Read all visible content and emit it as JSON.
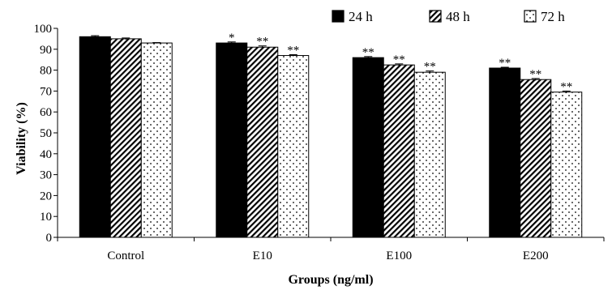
{
  "chart_data": {
    "type": "bar",
    "title": "",
    "xlabel": "Groups (ng/ml)",
    "ylabel": "Viability (%)",
    "ylim": [
      0,
      100
    ],
    "yticks": [
      0,
      10,
      20,
      30,
      40,
      50,
      60,
      70,
      80,
      90,
      100
    ],
    "grid": false,
    "legend_position": "top-right",
    "categories": [
      "Control",
      "E10",
      "E100",
      "E200"
    ],
    "series": [
      {
        "name": "24 h",
        "pattern": "solid-black",
        "values": [
          96,
          93,
          86,
          81
        ],
        "errors": [
          0.5,
          0.5,
          0.5,
          0.4
        ],
        "significance": [
          "",
          "*",
          "**",
          "**"
        ]
      },
      {
        "name": "48 h",
        "pattern": "diagonal-hatch",
        "values": [
          95,
          91,
          82.5,
          75.5
        ],
        "errors": [
          0.4,
          0.6,
          0.5,
          0.5
        ],
        "significance": [
          "",
          "**",
          "**",
          "**"
        ]
      },
      {
        "name": "72 h",
        "pattern": "dotted",
        "values": [
          93,
          87,
          79,
          69.5
        ],
        "errors": [
          0.2,
          0.4,
          0.6,
          0.5
        ],
        "significance": [
          "",
          "**",
          "**",
          "**"
        ]
      }
    ]
  }
}
